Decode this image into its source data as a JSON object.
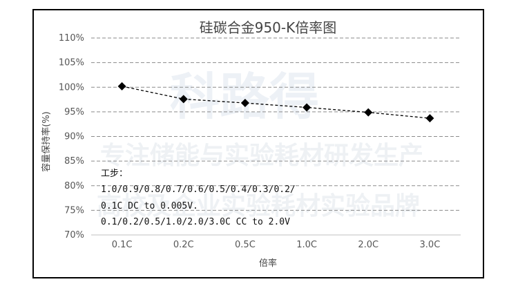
{
  "watermark": {
    "logo": "科路得",
    "line1": "专注储能与实验耗材研发生产",
    "line2": "高校及企业实验耗材实验品牌"
  },
  "chart_data": {
    "type": "line",
    "title": "硅碳合金950-K倍率图",
    "xlabel": "倍率",
    "ylabel": "容量保持率(%)",
    "categories": [
      "0.1C",
      "0.2C",
      "0.5C",
      "1.0C",
      "2.0C",
      "3.0C"
    ],
    "series": [
      {
        "values": [
          100.2,
          97.6,
          96.8,
          95.9,
          94.9,
          93.7
        ]
      }
    ],
    "ylim": [
      70,
      110
    ],
    "yticks": [
      "70%",
      "75%",
      "80%",
      "85%",
      "90%",
      "95%",
      "100%",
      "105%",
      "110%"
    ],
    "grid": "horizontal dashed",
    "line_style": "dashed",
    "marker": "diamond",
    "series_color": "#000000",
    "annotation": {
      "title": "工步：",
      "lines": [
        "1.0/0.9/0.8/0.7/0.6/0.5/0.4/0.3/0.2/",
        "0.1C DC to 0.005V.",
        "0.1/0.2/0.5/1.0/2.0/3.0C CC to 2.0V"
      ]
    }
  }
}
